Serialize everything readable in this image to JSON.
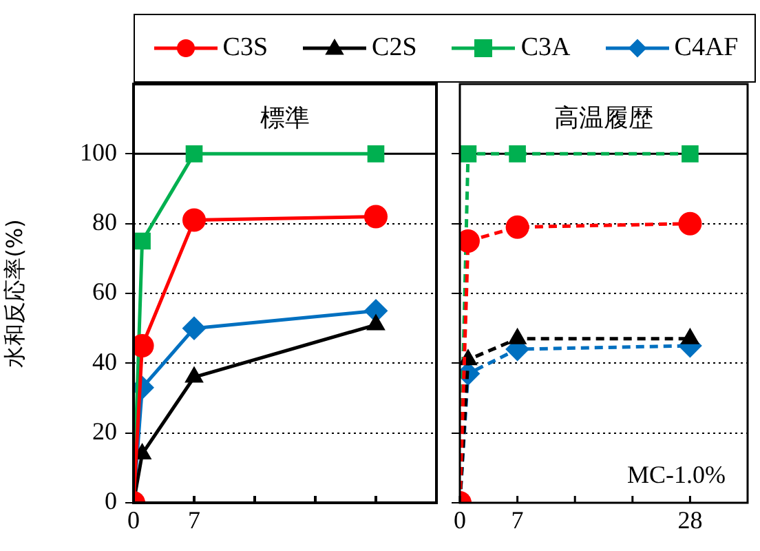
{
  "chart_data": [
    {
      "type": "line",
      "ylabel": "水和反応率(%)",
      "annotations": [
        "標準"
      ],
      "x": [
        0,
        1,
        7,
        28
      ],
      "xlim": [
        0,
        35
      ],
      "xticks": [
        0,
        7,
        {
          "value": 14,
          "label": null
        },
        {
          "value": 21,
          "label": null
        },
        {
          "value": 28,
          "label": null
        }
      ],
      "ylim": [
        0,
        120
      ],
      "yticks": [
        0,
        20,
        40,
        60,
        80,
        100
      ],
      "grid": "y",
      "legend": "top",
      "line_style": "solid",
      "ref_lines": [
        {
          "axis": "y",
          "value": 100,
          "label": null
        }
      ],
      "series": [
        {
          "name": "C3S",
          "color": "#ff0000",
          "marker": "circle",
          "values": [
            0,
            45,
            81,
            82
          ]
        },
        {
          "name": "C2S",
          "color": "#000000",
          "marker": "triangle",
          "values": [
            0,
            14,
            36,
            51
          ]
        },
        {
          "name": "C3A",
          "color": "#00b050",
          "marker": "square",
          "values": [
            0,
            75,
            100,
            100
          ]
        },
        {
          "name": "C4AF",
          "color": "#0070c0",
          "marker": "diamond",
          "values": [
            0,
            33,
            50,
            55
          ]
        }
      ]
    },
    {
      "type": "line",
      "annotations": [
        "高温履歴",
        "MC-1.0%"
      ],
      "x": [
        0,
        1,
        7,
        28
      ],
      "xlim": [
        0,
        35
      ],
      "xticks": [
        0,
        7,
        {
          "value": 14,
          "label": null
        },
        {
          "value": 21,
          "label": null
        },
        28
      ],
      "ylim": [
        0,
        120
      ],
      "yticks": [
        0,
        20,
        40,
        60,
        80,
        100
      ],
      "grid": "y",
      "tick_labels": "x",
      "line_style": "dashed",
      "ref_lines": [
        {
          "axis": "y",
          "value": 100,
          "label": null
        }
      ],
      "series": [
        {
          "color": "#ff0000",
          "marker": "circle",
          "values": [
            0,
            75,
            79,
            80
          ]
        },
        {
          "color": "#000000",
          "marker": "triangle",
          "values": [
            0,
            41,
            47,
            47
          ]
        },
        {
          "color": "#00b050",
          "marker": "square",
          "values": [
            0,
            100,
            100,
            100
          ]
        },
        {
          "color": "#0070c0",
          "marker": "diamond",
          "values": [
            0,
            37,
            44,
            45
          ]
        }
      ]
    }
  ]
}
